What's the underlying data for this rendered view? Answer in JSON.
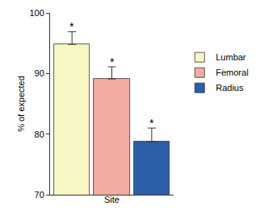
{
  "chart_data": {
    "type": "bar",
    "x_label": "Site",
    "y_label": "% of expected",
    "categories": [
      "Lumbar",
      "Femoral",
      "Radius"
    ],
    "values": [
      94.8,
      89.1,
      78.7
    ],
    "errors": [
      2.1,
      2.0,
      2.3
    ],
    "colors": [
      "#f8f6c2",
      "#f2aba1",
      "#2c5fa8"
    ],
    "annotations": [
      {
        "category": "Lumbar",
        "text": "*"
      },
      {
        "category": "Femoral",
        "text": "*"
      },
      {
        "category": "Radius",
        "text": "*"
      }
    ],
    "ylim": [
      70,
      100
    ],
    "yticks": [
      70,
      80,
      90,
      100
    ],
    "grid": false,
    "legend": "right",
    "tick_labels": "y"
  }
}
